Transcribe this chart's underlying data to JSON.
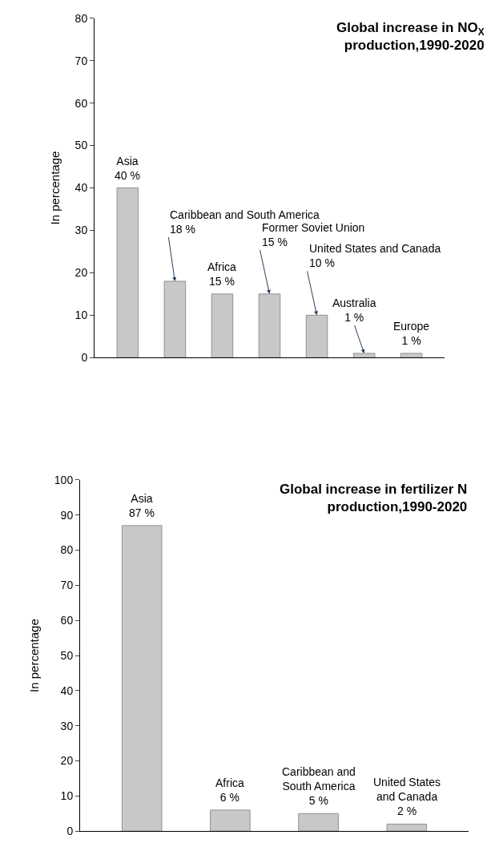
{
  "chart_data": [
    {
      "type": "bar",
      "title": "Global increase in NO$_{X}$ production,1990-2020",
      "ylabel": "In percentage",
      "categories": [
        null,
        null,
        null,
        null,
        null,
        null,
        null
      ],
      "values": [
        40,
        18,
        15,
        15,
        10,
        1,
        1
      ],
      "value_labels": [
        "40 %",
        "18 %",
        "15 %",
        "15 %",
        "10 %",
        "1 %",
        "1 %"
      ],
      "color": "#c8c8c8",
      "ylim": [
        0,
        80
      ],
      "yticks": [
        0,
        10,
        20,
        30,
        40,
        50,
        60,
        70,
        80
      ],
      "annotations": [
        "Asia",
        "Caribbean and South America",
        "Africa",
        "Former Soviet Union",
        "United States and Canada",
        "Australia",
        "Europe"
      ]
    },
    {
      "type": "bar",
      "title": "Global increase in fertilizer N production,1990-2020",
      "ylabel": "In percentage",
      "categories": [
        null,
        null,
        null,
        null
      ],
      "values": [
        87,
        6,
        5,
        2
      ],
      "value_labels": [
        "87 %",
        "6 %",
        "5 %",
        "2 %"
      ],
      "color": "#c8c8c8",
      "ylim": [
        0,
        100
      ],
      "yticks": [
        0,
        10,
        20,
        30,
        40,
        50,
        60,
        70,
        80,
        90,
        100
      ],
      "annotations": [
        "Asia",
        "Africa",
        "Caribbean and South America",
        "United States and Canada"
      ]
    }
  ]
}
